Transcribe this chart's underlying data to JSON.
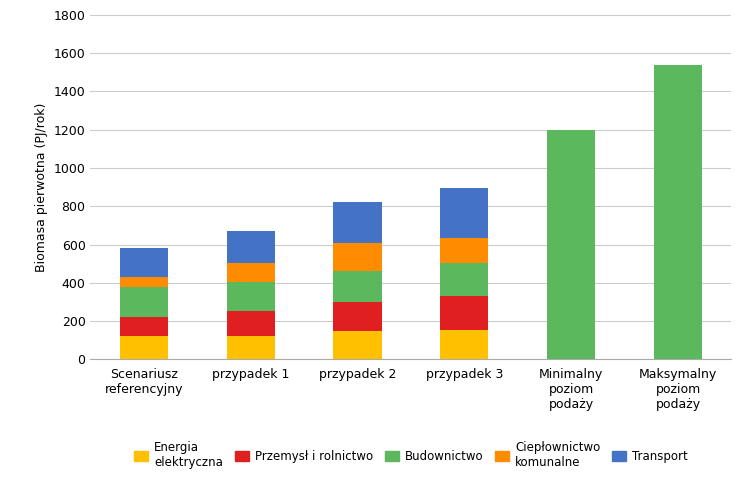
{
  "categories": [
    "Scenariusz\nreferencyjny",
    "przypadek 1",
    "przypadek 2",
    "przypadek 3",
    "Minimalny\npoziom\npodaży",
    "Maksymalny\npoziom\npodaży"
  ],
  "series": {
    "Energia elektryczna": [
      120,
      120,
      150,
      155,
      0,
      0
    ],
    "Przemysł i rolnictwo": [
      100,
      130,
      150,
      175,
      0,
      0
    ],
    "Budownictwo": [
      160,
      155,
      160,
      175,
      1200,
      1540
    ],
    "Ciepłownictwo komunalne": [
      50,
      100,
      150,
      130,
      0,
      0
    ],
    "Transport": [
      150,
      165,
      210,
      260,
      0,
      0
    ]
  },
  "bar_color_energia": "#FFC000",
  "bar_color_przemysl": "#E02020",
  "bar_color_budownictwo": "#5CB85C",
  "bar_color_cieplownictwo": "#FF8C00",
  "bar_color_transport": "#4472C4",
  "ylabel": "Biomasa pierwotna (PJ/rok)",
  "ylim": [
    0,
    1800
  ],
  "yticks": [
    0,
    200,
    400,
    600,
    800,
    1000,
    1200,
    1400,
    1600,
    1800
  ],
  "legend_labels": [
    "Energia\nelektryczna",
    "Przemysł i rolnictwo",
    "Budownictwo",
    "Ciepłownictwo\nkomunalne",
    "Transport"
  ],
  "background_color": "#FFFFFF",
  "grid_color": "#CCCCCC"
}
